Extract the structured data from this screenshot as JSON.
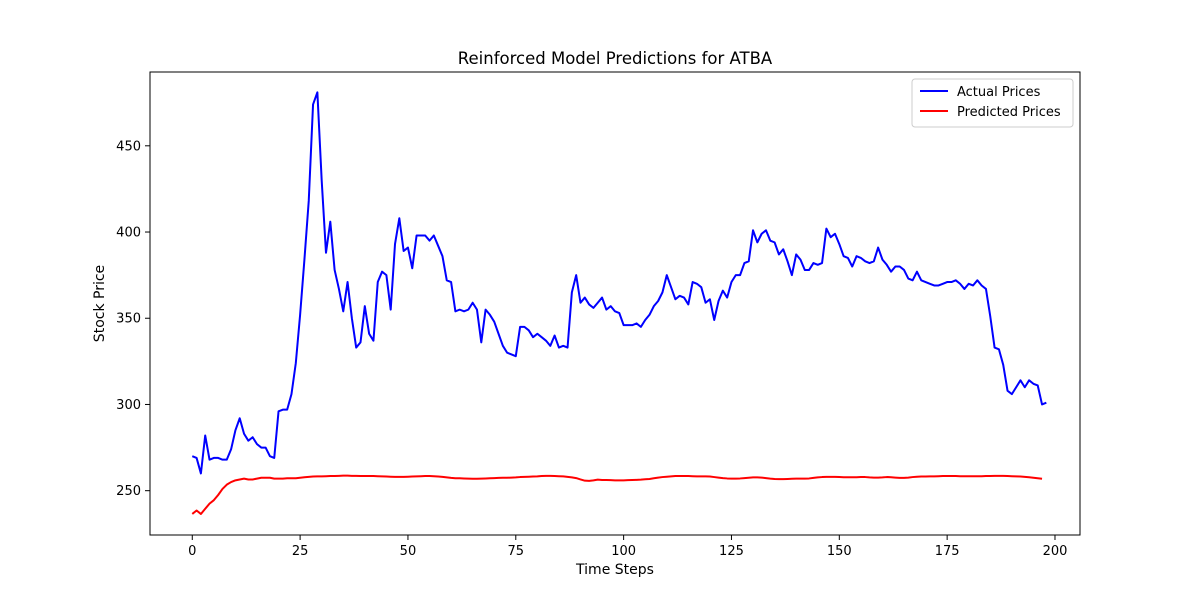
{
  "chart_data": {
    "type": "line",
    "title": "Reinforced Model Predictions for ATBA",
    "xlabel": "Time Steps",
    "ylabel": "Stock Price",
    "xlim": [
      -9.8,
      205.8
    ],
    "ylim": [
      224.3,
      492.8
    ],
    "xticks": [
      0,
      25,
      50,
      75,
      100,
      125,
      150,
      175,
      200
    ],
    "yticks": [
      250,
      300,
      350,
      400,
      450
    ],
    "grid": false,
    "legend_position": "top-right",
    "series": [
      {
        "name": "Actual Prices",
        "color": "#0000ff",
        "values": [
          270,
          269,
          260,
          282,
          268,
          269,
          269,
          268,
          268,
          274,
          285,
          292,
          283,
          279,
          281,
          277,
          275,
          275,
          270,
          269,
          296,
          297,
          297,
          306,
          324,
          352,
          384,
          418,
          474,
          481,
          430,
          388,
          406,
          378,
          367,
          354,
          371,
          350,
          333,
          336,
          357,
          341,
          337,
          371,
          377,
          375,
          355,
          393,
          408,
          389,
          391,
          379,
          398,
          398,
          398,
          395,
          398,
          392,
          386,
          372,
          371,
          354,
          355,
          354,
          355,
          359,
          355,
          336,
          355,
          352,
          348,
          341,
          334,
          330,
          329,
          328,
          345,
          345,
          343,
          339,
          341,
          339,
          337,
          334,
          340,
          333,
          334,
          333,
          365,
          375,
          359,
          362,
          358,
          356,
          359,
          362,
          355,
          357,
          354,
          353,
          346,
          346,
          346,
          347,
          345,
          349,
          352,
          357,
          360,
          365,
          375,
          368,
          361,
          363,
          362,
          358,
          371,
          370,
          368,
          359,
          361,
          349,
          360,
          366,
          362,
          371,
          375,
          375,
          382,
          383,
          401,
          394,
          399,
          401,
          395,
          394,
          387,
          390,
          383,
          375,
          387,
          384,
          378,
          378,
          382,
          381,
          382,
          402,
          397,
          399,
          393,
          386,
          385,
          380,
          386,
          385,
          383,
          382,
          383,
          391,
          384,
          381,
          377,
          380,
          380,
          378,
          373,
          372,
          377,
          372,
          371,
          370,
          369,
          369,
          370,
          371,
          371,
          372,
          370,
          367,
          370,
          369,
          372,
          369,
          367,
          351,
          333,
          332,
          323,
          308,
          306,
          310,
          314,
          310,
          314,
          312,
          311,
          300,
          301
        ]
      },
      {
        "name": "Predicted Prices",
        "color": "#ff0000",
        "values": [
          236.5,
          238.5,
          236.5,
          239.5,
          242.5,
          244.5,
          247.5,
          251,
          253.5,
          255,
          256,
          256.5,
          257,
          256.5,
          256.5,
          257,
          257.5,
          257.5,
          257.5,
          257,
          257,
          257,
          257.2,
          257.2,
          257.2,
          257.5,
          257.8,
          258,
          258.2,
          258.3,
          258.3,
          258.4,
          258.5,
          258.5,
          258.6,
          258.7,
          258.7,
          258.6,
          258.6,
          258.5,
          258.5,
          258.5,
          258.5,
          258.4,
          258.3,
          258.2,
          258.1,
          258,
          258,
          258,
          258.1,
          258.2,
          258.3,
          258.4,
          258.5,
          258.5,
          258.4,
          258.2,
          258,
          257.7,
          257.4,
          257.2,
          257.2,
          257.1,
          257,
          256.9,
          256.9,
          257,
          257.1,
          257.2,
          257.3,
          257.4,
          257.5,
          257.5,
          257.6,
          257.7,
          257.9,
          258,
          258.1,
          258.2,
          258.3,
          258.5,
          258.6,
          258.6,
          258.5,
          258.4,
          258.3,
          258,
          257.7,
          257.3,
          256.5,
          255.8,
          255.7,
          256,
          256.4,
          256.2,
          256.2,
          256.1,
          256,
          256,
          256,
          256.1,
          256.2,
          256.3,
          256.4,
          256.6,
          256.8,
          257.2,
          257.6,
          257.9,
          258.1,
          258.3,
          258.5,
          258.5,
          258.5,
          258.5,
          258.4,
          258.3,
          258.3,
          258.3,
          258.2,
          257.9,
          257.6,
          257.3,
          257.1,
          257,
          257,
          257.1,
          257.3,
          257.5,
          257.7,
          257.7,
          257.6,
          257.3,
          257,
          256.8,
          256.7,
          256.7,
          256.8,
          256.9,
          257,
          257,
          257,
          257.1,
          257.4,
          257.7,
          257.9,
          258,
          258,
          258,
          257.9,
          257.8,
          257.8,
          257.8,
          257.8,
          257.9,
          257.9,
          257.7,
          257.6,
          257.6,
          257.7,
          257.9,
          257.8,
          257.6,
          257.4,
          257.4,
          257.6,
          257.9,
          258.1,
          258.2,
          258.2,
          258.3,
          258.3,
          258.4,
          258.5,
          258.5,
          258.5,
          258.5,
          258.4,
          258.4,
          258.4,
          258.4,
          258.4,
          258.4,
          258.5,
          258.5,
          258.6,
          258.6,
          258.6,
          258.5,
          258.4,
          258.3,
          258.2,
          258,
          257.8,
          257.5,
          257.2,
          256.9
        ]
      }
    ]
  }
}
